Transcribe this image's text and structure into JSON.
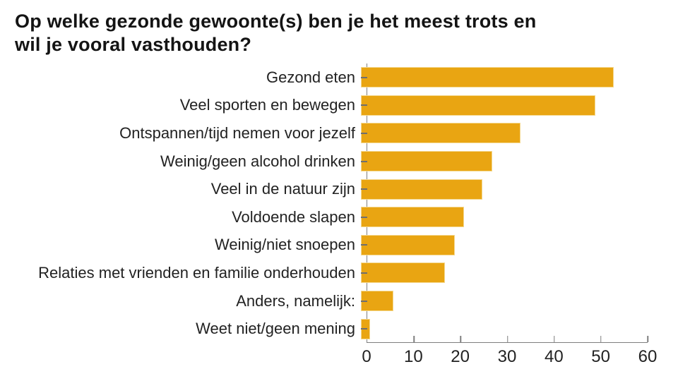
{
  "title_lines": [
    "Op welke gezonde gewoonte(s) ben je het meest trots en",
    "wil je vooral vasthouden?"
  ],
  "chart_data": {
    "type": "bar",
    "orientation": "horizontal",
    "title": "Op welke gezonde gewoonte(s) ben je het meest trots en wil je vooral vasthouden?",
    "categories": [
      "Gezond eten",
      "Veel sporten en bewegen",
      "Ontspannen/tijd nemen voor jezelf",
      "Weinig/geen alcohol drinken",
      "Veel in de natuur zijn",
      "Voldoende slapen",
      "Weinig/niet snoepen",
      "Relaties met vrienden en familie onderhouden",
      "Anders, namelijk:",
      "Weet niet/geen mening"
    ],
    "values": [
      54,
      50,
      34,
      28,
      26,
      22,
      20,
      18,
      7,
      2
    ],
    "xlabel": "",
    "ylabel": "",
    "xlim": [
      0,
      60
    ],
    "xticks": [
      0,
      10,
      20,
      30,
      40,
      50,
      60
    ],
    "grid": false,
    "legend": false,
    "colors": {
      "bar": "#E9A512",
      "bar_border": "#F4D88F",
      "axis": "#7F7F7F",
      "tick": "#6F6F6F",
      "text": "#222222",
      "title_text": "#141414"
    }
  }
}
